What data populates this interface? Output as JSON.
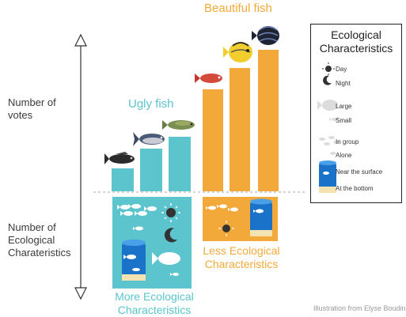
{
  "axis": {
    "votes_label": [
      "Number of",
      "votes"
    ],
    "eco_label": [
      "Number of",
      "Ecological",
      "Charateristics"
    ]
  },
  "groups": {
    "ugly_title": "Ugly fish",
    "beautiful_title": "Beautiful fish",
    "more_eco": [
      "More Ecological",
      "Characteristics"
    ],
    "less_eco": [
      "Less Ecological",
      "Characteristics"
    ]
  },
  "legend": {
    "title": [
      "Ecological",
      "Characteristics"
    ],
    "items": [
      "Day",
      "Night",
      "Large",
      "Small",
      "In group",
      "Alone",
      "Near the surface",
      "At the bottom"
    ]
  },
  "credit": "Illustration from Elyse Boudin",
  "colors": {
    "teal": "#5bc4cc",
    "orange": "#f3a93a"
  }
}
